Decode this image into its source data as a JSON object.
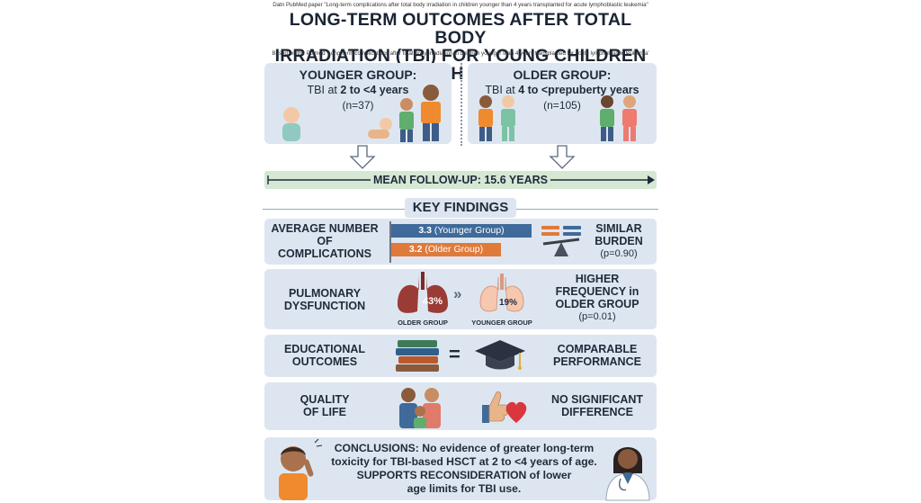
{
  "header": {
    "source_top": "Datn PubMed paper \"Long-term complications after total body irradiation in children younger than 4 years transplanted for acute lymphoblastic leukemia\"",
    "title_line1": "LONG-TERM OUTCOMES AFTER TOTAL BODY",
    "title_line2": "IRRADIATION (TBI) FOR YOUNG CHILDREN WITH ALL",
    "source_bottom": "Based on the Polmed 'Long-term complications after total body irradiation in children younger than 4 years transplanted for acute lymphoblastic leukemia'"
  },
  "groups": {
    "younger": {
      "heading": "YOUNGER GROUP:",
      "tbi_prefix": "TBI at ",
      "tbi_range": "2 to <4 years",
      "n": "(n=37)"
    },
    "older": {
      "heading": "OLDER GROUP:",
      "tbi_prefix": "TBI at ",
      "tbi_range": "4 to <prepuberty years",
      "n": "(n=105)"
    }
  },
  "followup": "MEAN FOLLOW-UP: 15.6 YEARS",
  "key_findings": "KEY FINDINGS",
  "complications": {
    "label_lines": [
      "AVERAGE NUMBER",
      "OF",
      "COMPLICATIONS"
    ],
    "younger_value": "3.3",
    "younger_label": " (Younger Group)",
    "older_value": "3.2",
    "older_label": " (Older Group)",
    "result_lines": [
      "SIMILAR",
      "BURDEN"
    ],
    "p": "(p=0.90)",
    "colors": {
      "younger": "#3f6a99",
      "older": "#e07a3a"
    }
  },
  "pulmonary": {
    "label_lines": [
      "PULMONARY",
      "DYSFUNCTION"
    ],
    "older_pct": "43%",
    "older_caption": "OLDER GROUP",
    "younger_pct": "19%",
    "younger_caption": "YOUNGER GROUP",
    "result_lines": [
      "HIGHER",
      "FREQUENCY in",
      "OLDER GROUP"
    ],
    "p": "(p=0.01)"
  },
  "education": {
    "label_lines": [
      "EDUCATIONAL",
      "OUTCOMES"
    ],
    "result_lines": [
      "COMPARABLE",
      "PERFORMANCE"
    ]
  },
  "qol": {
    "label_lines": [
      "QUALITY",
      "OF LIFE"
    ],
    "result_lines": [
      "NO SIGNIFICANT",
      "DIFFERENCE"
    ]
  },
  "conclusions": {
    "lead": "CONCLUSIONS:",
    "line1_rest": " No evidence of greater long-term",
    "line2": "toxicity for TBI-based HSCT at 2 to <4 years of age.",
    "line3": "SUPPORTS RECONSIDERATION of lower",
    "line4": "age limits for TBI use."
  },
  "icons": [
    "baby-icon",
    "child-icon",
    "arrow-down-icon",
    "lungs-icon",
    "books-icon",
    "equals-icon",
    "graduation-cap-icon",
    "balance-scale-icon",
    "family-icon",
    "thumbs-up-heart-icon",
    "doctor-icon"
  ]
}
